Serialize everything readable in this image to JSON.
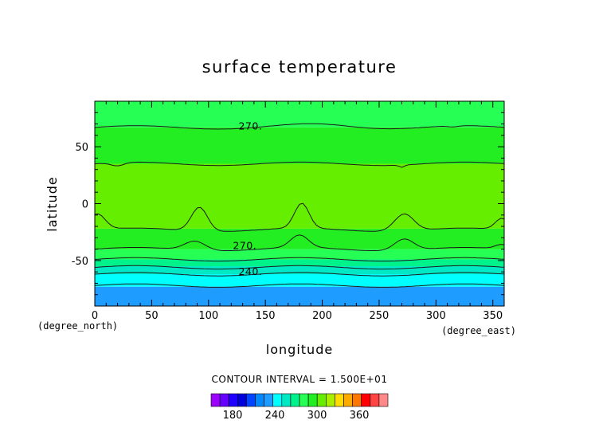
{
  "chart_data": {
    "type": "contour",
    "title": "surface temperature",
    "xlabel": "longitude",
    "ylabel": "latitude",
    "x_unit": "(degree_east)",
    "y_unit": "(degree_north)",
    "xlim": [
      0,
      360
    ],
    "ylim": [
      -90,
      90
    ],
    "xticks": [
      0,
      50,
      100,
      150,
      200,
      250,
      300,
      350
    ],
    "yticks": [
      -50,
      0,
      50
    ],
    "contour_interval_text": "CONTOUR INTERVAL = 1.500E+01",
    "contour_labels": [
      {
        "text": "270.",
        "lon": 125,
        "lat": 68
      },
      {
        "text": "270.",
        "lon": 120,
        "lat": -37
      },
      {
        "text": "240.",
        "lon": 125,
        "lat": -60
      }
    ],
    "bands_by_latitude": [
      {
        "lat_range": [
          -90,
          -73
        ],
        "temperature": 225,
        "color": "#1e9cff"
      },
      {
        "lat_range": [
          -73,
          -62
        ],
        "temperature": 235,
        "color": "#00ffff"
      },
      {
        "lat_range": [
          -62,
          -55
        ],
        "temperature": 245,
        "color": "#00e8c4"
      },
      {
        "lat_range": [
          -55,
          -49
        ],
        "temperature": 255,
        "color": "#00f28a"
      },
      {
        "lat_range": [
          -49,
          -40
        ],
        "temperature": 265,
        "color": "#26ff54"
      },
      {
        "lat_range": [
          -40,
          -22
        ],
        "temperature": 275,
        "color": "#22ee22"
      },
      {
        "lat_range": [
          -22,
          35
        ],
        "temperature": 285,
        "color": "#66ee00"
      },
      {
        "lat_range": [
          35,
          67
        ],
        "temperature": 275,
        "color": "#22ee22"
      },
      {
        "lat_range": [
          67,
          90
        ],
        "temperature": 265,
        "color": "#26ff54"
      }
    ],
    "colorbar": {
      "tick_labels": [
        "180",
        "240",
        "300",
        "360"
      ],
      "colors": [
        "#9c00ff",
        "#6600ff",
        "#2000ff",
        "#0000dd",
        "#0044ff",
        "#0088ff",
        "#1e9cff",
        "#00ffff",
        "#00e8c4",
        "#00f28a",
        "#26ff54",
        "#22ee22",
        "#66ee00",
        "#aaee00",
        "#ffdd00",
        "#ffaa00",
        "#ff7700",
        "#ff0000",
        "#ff4444",
        "#ff8888"
      ]
    }
  }
}
